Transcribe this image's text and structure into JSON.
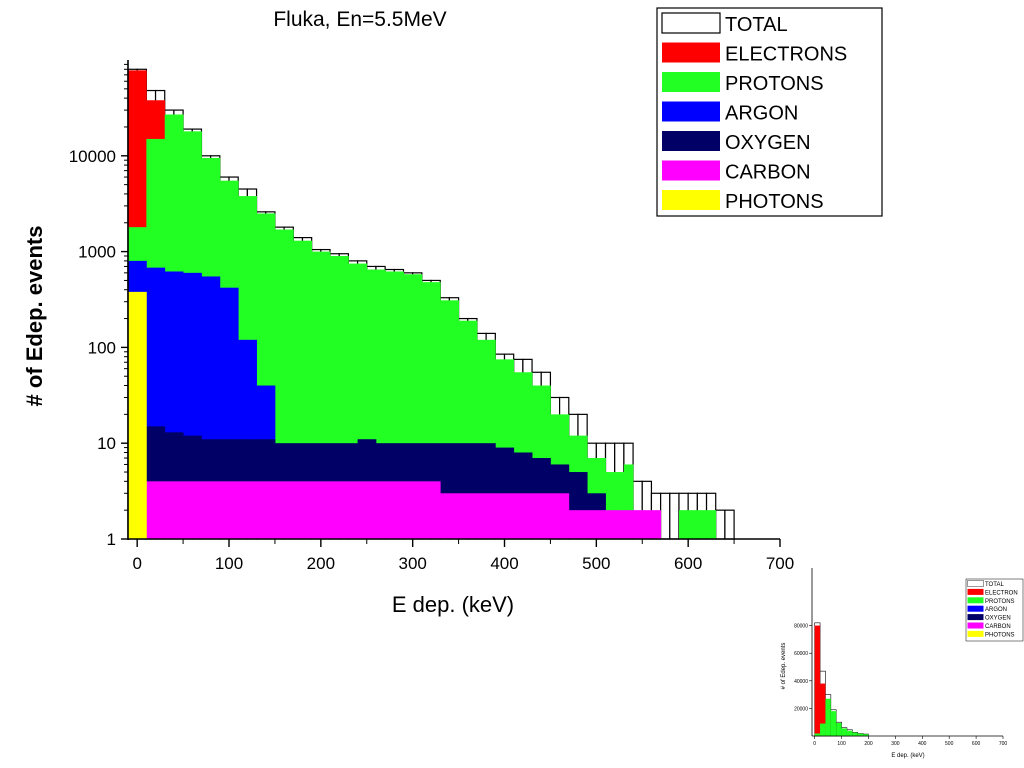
{
  "title": "Fluka, En=5.5MeV",
  "chart_data": [
    {
      "type": "bar",
      "title": "Fluka, En=5.5MeV",
      "xlabel": "E dep. (keV)",
      "ylabel": "# of Edep. events",
      "xlim": [
        -10,
        700
      ],
      "ylim": [
        1,
        100000
      ],
      "yscale": "log",
      "xticks": [
        0,
        100,
        200,
        300,
        400,
        500,
        600,
        700
      ],
      "yticks": [
        1,
        10,
        100,
        1000,
        10000
      ],
      "ytick_labels": [
        "1",
        "10",
        "100",
        "1000",
        "10000"
      ],
      "bin_width_kev": 10,
      "bin_starts_kev": [
        -10,
        0,
        10,
        20,
        30,
        40,
        50,
        60,
        70,
        80,
        90,
        100,
        110,
        120,
        130,
        140,
        150,
        160,
        170,
        180,
        190,
        200,
        210,
        220,
        230,
        240,
        250,
        260,
        270,
        280,
        290,
        300,
        310,
        320,
        330,
        340,
        350,
        360,
        370,
        380,
        390,
        400,
        410,
        420,
        430,
        440,
        450,
        460,
        470,
        480,
        490,
        500,
        510,
        520,
        530,
        540,
        550,
        560,
        570,
        580,
        590,
        600,
        610,
        620,
        630,
        640,
        650
      ],
      "legend": {
        "position": "top-right"
      },
      "series": [
        {
          "name": "TOTAL",
          "color": "#ffffff",
          "stroke": "#000000",
          "values": [
            80000,
            80000,
            48000,
            48000,
            30000,
            30000,
            19000,
            19000,
            10000,
            10000,
            6000,
            6000,
            4500,
            4500,
            2600,
            2600,
            1800,
            1800,
            1400,
            1400,
            1050,
            1050,
            950,
            950,
            800,
            800,
            700,
            700,
            650,
            650,
            600,
            600,
            500,
            500,
            330,
            330,
            200,
            200,
            140,
            140,
            85,
            85,
            75,
            75,
            55,
            55,
            30,
            30,
            20,
            20,
            10,
            10,
            10,
            10,
            10,
            4,
            4,
            3,
            3,
            3,
            3,
            3,
            3,
            3,
            2,
            2,
            0
          ]
        },
        {
          "name": "ELECTRONS",
          "color": "#ff0000",
          "values": [
            78000,
            78000,
            38000,
            38000,
            0,
            0,
            0,
            0,
            0,
            0,
            0,
            0,
            0,
            0,
            0,
            0,
            0,
            0,
            0,
            0,
            0,
            0,
            0,
            0,
            0,
            0,
            0,
            0,
            0,
            0,
            0,
            0,
            0,
            0,
            0,
            0,
            0,
            0,
            0,
            0,
            0,
            0,
            0,
            0,
            0,
            0,
            0,
            0,
            0,
            0,
            0,
            0,
            0,
            0,
            0,
            0,
            0,
            0,
            0,
            0,
            0,
            0,
            0,
            0,
            0,
            0,
            0
          ]
        },
        {
          "name": "PROTONS",
          "color": "#22ff22",
          "values": [
            1800,
            1800,
            15000,
            15000,
            27000,
            27000,
            18000,
            18000,
            9500,
            9500,
            5500,
            5500,
            3800,
            3800,
            2500,
            2500,
            1700,
            1700,
            1300,
            1300,
            1000,
            1000,
            900,
            900,
            750,
            750,
            650,
            650,
            620,
            620,
            580,
            580,
            480,
            480,
            310,
            310,
            190,
            190,
            120,
            120,
            75,
            75,
            55,
            55,
            40,
            40,
            20,
            20,
            12,
            12,
            7,
            7,
            5,
            5,
            6,
            0,
            0,
            0,
            0,
            0,
            2,
            2,
            2,
            2,
            0,
            0,
            0
          ]
        },
        {
          "name": "ARGON",
          "color": "#0000ff",
          "values": [
            800,
            800,
            680,
            680,
            620,
            620,
            600,
            600,
            550,
            550,
            420,
            420,
            120,
            120,
            40,
            40,
            0,
            0,
            0,
            0,
            0,
            0,
            0,
            0,
            0,
            0,
            0,
            0,
            0,
            0,
            0,
            0,
            0,
            0,
            0,
            0,
            0,
            0,
            0,
            0,
            0,
            0,
            0,
            0,
            0,
            0,
            0,
            0,
            0,
            0,
            0,
            0,
            0,
            0,
            0,
            0,
            0,
            0,
            0,
            0,
            0,
            0,
            0,
            0,
            0,
            0,
            0
          ]
        },
        {
          "name": "OXYGEN",
          "color": "#000066",
          "values": [
            0,
            0,
            15,
            15,
            13,
            13,
            12,
            12,
            11,
            11,
            11,
            11,
            11,
            11,
            11,
            11,
            10,
            10,
            10,
            10,
            10,
            10,
            10,
            10,
            10,
            11,
            11,
            10,
            10,
            10,
            10,
            10,
            10,
            10,
            10,
            10,
            10,
            10,
            10,
            10,
            9,
            9,
            8,
            8,
            7,
            7,
            6,
            6,
            5,
            5,
            3,
            3,
            0,
            0,
            0,
            0,
            0,
            0,
            0,
            0,
            0,
            0,
            0,
            0,
            0,
            0,
            0
          ]
        },
        {
          "name": "CARBON",
          "color": "#ff00ff",
          "values": [
            0,
            0,
            4,
            4,
            4,
            4,
            4,
            4,
            4,
            4,
            4,
            4,
            4,
            4,
            4,
            4,
            4,
            4,
            4,
            4,
            4,
            4,
            4,
            4,
            4,
            4,
            4,
            4,
            4,
            4,
            4,
            4,
            4,
            4,
            3,
            3,
            3,
            3,
            3,
            3,
            3,
            3,
            3,
            3,
            3,
            3,
            3,
            3,
            2,
            2,
            2,
            2,
            2,
            2,
            2,
            2,
            2,
            2,
            0,
            0,
            0,
            0,
            0,
            0,
            0,
            0,
            0
          ]
        },
        {
          "name": "PHOTONS",
          "color": "#ffff00",
          "values": [
            380,
            380,
            0,
            0,
            0,
            0,
            0,
            0,
            0,
            0,
            0,
            0,
            0,
            0,
            0,
            0,
            0,
            0,
            0,
            0,
            0,
            0,
            0,
            0,
            0,
            0,
            0,
            0,
            0,
            0,
            0,
            0,
            0,
            0,
            0,
            0,
            0,
            0,
            0,
            0,
            0,
            0,
            0,
            0,
            0,
            0,
            0,
            0,
            0,
            0,
            0,
            0,
            0,
            0,
            0,
            0,
            0,
            0,
            0,
            0,
            0,
            0,
            0,
            0,
            0,
            0,
            0
          ]
        }
      ]
    },
    {
      "type": "bar",
      "xlabel": "E dep. (keV)",
      "ylabel": "# of Edep. events",
      "xlim": [
        -10,
        700
      ],
      "ylim": [
        0,
        100000
      ],
      "yscale": "linear",
      "xticks": [
        0,
        100,
        200,
        300,
        400,
        500,
        600,
        700
      ],
      "yticks": [
        20000,
        40000,
        60000,
        80000
      ],
      "ytick_labels": [
        "20000",
        "40000",
        "60000",
        "80000"
      ],
      "legend_labels": [
        "TOTAL",
        "ELECTRON",
        "PROTONS",
        "ARGON",
        "OXYGEN",
        "CARBON",
        "PHOTONS"
      ],
      "series": [
        {
          "name": "TOTAL",
          "color": "#ffffff",
          "values": [
            82000,
            47000,
            30000,
            19000,
            10000,
            6000,
            4500,
            2600,
            1800,
            1400
          ]
        },
        {
          "name": "ELECTRON",
          "color": "#ff0000",
          "values": [
            80000,
            38000,
            0,
            0,
            0,
            0,
            0,
            0,
            0,
            0
          ]
        },
        {
          "name": "PROTONS",
          "color": "#22ff22",
          "values": [
            1800,
            9000,
            27000,
            18000,
            9500,
            5500,
            3800,
            2500,
            1700,
            1300
          ]
        }
      ],
      "bin_starts_kev": [
        0,
        20,
        40,
        60,
        80,
        100,
        120,
        140,
        160,
        180
      ]
    }
  ]
}
